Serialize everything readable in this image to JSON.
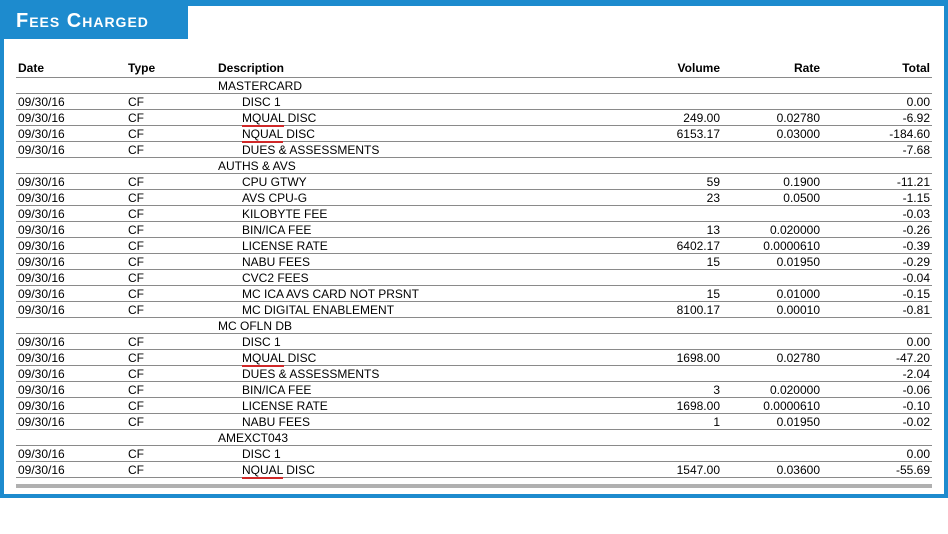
{
  "title": "Fees Charged",
  "colors": {
    "brand": "#1d8bce",
    "rule": "#8a8a8a",
    "bottom": "#b0b0b0",
    "spell": "#d02828",
    "text": "#000000",
    "bg": "#ffffff"
  },
  "columns": {
    "date": "Date",
    "type": "Type",
    "description": "Description",
    "volume": "Volume",
    "rate": "Rate",
    "total": "Total"
  },
  "rows": [
    {
      "kind": "section",
      "description": "MASTERCARD"
    },
    {
      "kind": "row",
      "date": "09/30/16",
      "type": "CF",
      "description": "DISC 1",
      "indent": true,
      "total": "0.00"
    },
    {
      "kind": "row",
      "date": "09/30/16",
      "type": "CF",
      "description_pre": "MQUAL",
      "description_post": " DISC",
      "indent": true,
      "spellcheck": true,
      "volume": "249.00",
      "rate": "0.02780",
      "total": "-6.92"
    },
    {
      "kind": "row",
      "date": "09/30/16",
      "type": "CF",
      "description_pre": "NQUAL",
      "description_post": " DISC",
      "indent": true,
      "spellcheck": true,
      "volume": "6153.17",
      "rate": "0.03000",
      "total": "-184.60"
    },
    {
      "kind": "row",
      "date": "09/30/16",
      "type": "CF",
      "description": "DUES & ASSESSMENTS",
      "indent": true,
      "total": "-7.68"
    },
    {
      "kind": "section",
      "description": "AUTHS & AVS"
    },
    {
      "kind": "row",
      "date": "09/30/16",
      "type": "CF",
      "description": "CPU GTWY",
      "indent": true,
      "volume": "59",
      "rate": "0.1900",
      "total": "-11.21"
    },
    {
      "kind": "row",
      "date": "09/30/16",
      "type": "CF",
      "description": "AVS CPU-G",
      "indent": true,
      "volume": "23",
      "rate": "0.0500",
      "total": "-1.15"
    },
    {
      "kind": "row",
      "date": "09/30/16",
      "type": "CF",
      "description": "KILOBYTE FEE",
      "indent": true,
      "total": "-0.03"
    },
    {
      "kind": "row",
      "date": "09/30/16",
      "type": "CF",
      "description": "BIN/ICA FEE",
      "indent": true,
      "volume": "13",
      "rate": "0.020000",
      "total": "-0.26"
    },
    {
      "kind": "row",
      "date": "09/30/16",
      "type": "CF",
      "description": "LICENSE RATE",
      "indent": true,
      "volume": "6402.17",
      "rate": "0.0000610",
      "total": "-0.39"
    },
    {
      "kind": "row",
      "date": "09/30/16",
      "type": "CF",
      "description": "NABU FEES",
      "indent": true,
      "volume": "15",
      "rate": "0.01950",
      "total": "-0.29"
    },
    {
      "kind": "row",
      "date": "09/30/16",
      "type": "CF",
      "description": "CVC2 FEES",
      "indent": true,
      "total": "-0.04"
    },
    {
      "kind": "row",
      "date": "09/30/16",
      "type": "CF",
      "description": "MC ICA AVS CARD NOT PRSNT",
      "indent": true,
      "volume": "15",
      "rate": "0.01000",
      "total": "-0.15"
    },
    {
      "kind": "row",
      "date": "09/30/16",
      "type": "CF",
      "description": "MC DIGITAL ENABLEMENT",
      "indent": true,
      "volume": "8100.17",
      "rate": "0.00010",
      "total": "-0.81"
    },
    {
      "kind": "section",
      "description": "MC OFLN DB"
    },
    {
      "kind": "row",
      "date": "09/30/16",
      "type": "CF",
      "description": "DISC 1",
      "indent": true,
      "total": "0.00"
    },
    {
      "kind": "row",
      "date": "09/30/16",
      "type": "CF",
      "description_pre": "MQUAL",
      "description_post": " DISC",
      "indent": true,
      "spellcheck": true,
      "volume": "1698.00",
      "rate": "0.02780",
      "total": "-47.20"
    },
    {
      "kind": "row",
      "date": "09/30/16",
      "type": "CF",
      "description": "DUES & ASSESSMENTS",
      "indent": true,
      "total": "-2.04"
    },
    {
      "kind": "row",
      "date": "09/30/16",
      "type": "CF",
      "description": "BIN/ICA FEE",
      "indent": true,
      "volume": "3",
      "rate": "0.020000",
      "total": "-0.06"
    },
    {
      "kind": "row",
      "date": "09/30/16",
      "type": "CF",
      "description": "LICENSE RATE",
      "indent": true,
      "volume": "1698.00",
      "rate": "0.0000610",
      "total": "-0.10"
    },
    {
      "kind": "row",
      "date": "09/30/16",
      "type": "CF",
      "description": "NABU FEES",
      "indent": true,
      "volume": "1",
      "rate": "0.01950",
      "total": "-0.02"
    },
    {
      "kind": "section",
      "description": "AMEXCT043"
    },
    {
      "kind": "row",
      "date": "09/30/16",
      "type": "CF",
      "description": "DISC 1",
      "indent": true,
      "total": "0.00"
    },
    {
      "kind": "row",
      "date": "09/30/16",
      "type": "CF",
      "description_pre": "NQUAL",
      "description_post": " DISC",
      "indent": true,
      "spellcheck": true,
      "volume": "1547.00",
      "rate": "0.03600",
      "total": "-55.69"
    }
  ]
}
